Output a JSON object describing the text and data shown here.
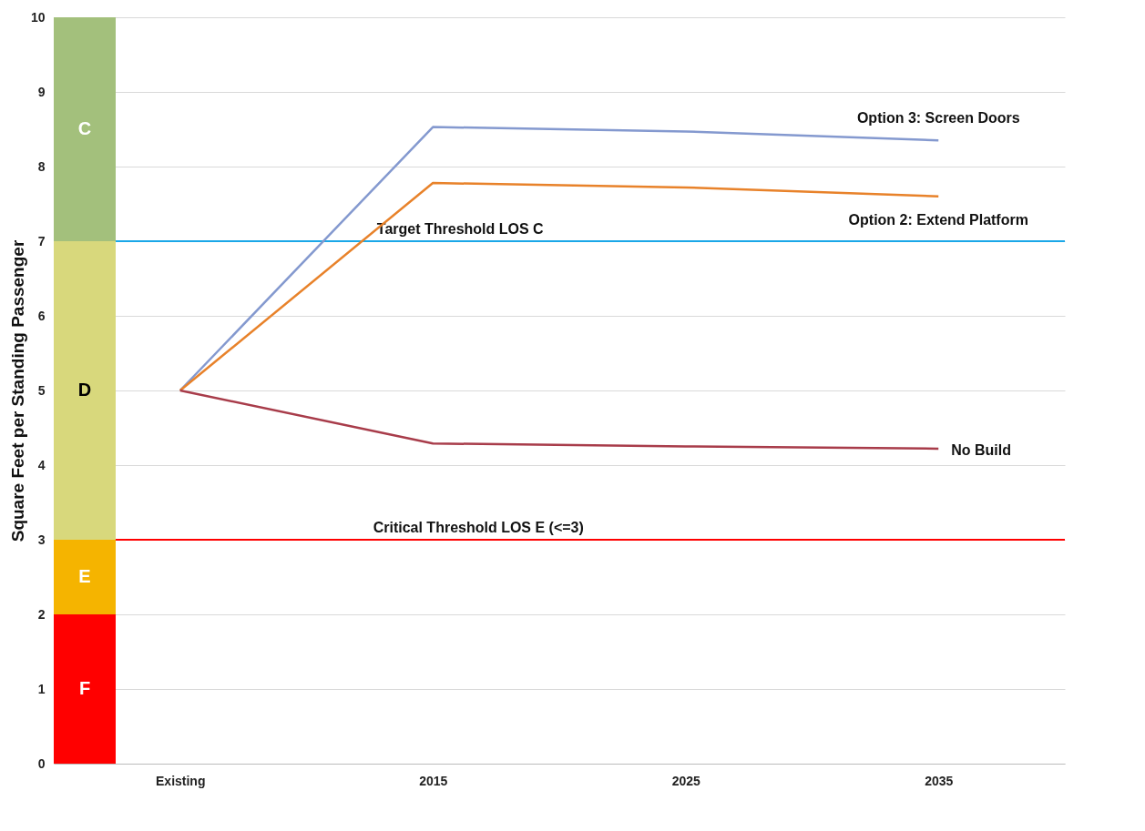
{
  "chart_data": {
    "type": "line",
    "ylabel": "Square Feet per Standing Passenger",
    "categories": [
      "Existing",
      "2015",
      "2025",
      "2035"
    ],
    "series": [
      {
        "name": "Option 3: Screen Doors",
        "color": "#8499cf",
        "values": [
          5,
          8.53,
          8.47,
          8.35
        ]
      },
      {
        "name": "Option 2: Extend Platform",
        "color": "#e8822a",
        "values": [
          5,
          7.78,
          7.72,
          7.6
        ]
      },
      {
        "name": "No Build",
        "color": "#a83c4a",
        "values": [
          5,
          4.29,
          4.25,
          4.22
        ]
      }
    ],
    "ylim": [
      0,
      10
    ],
    "yticks": [
      0,
      1,
      2,
      3,
      4,
      5,
      6,
      7,
      8,
      9,
      10
    ],
    "grid": "y",
    "ref_lines": [
      {
        "axis": "y",
        "value": 7,
        "label": "Target Threshold LOS C",
        "color": "#1aa7e8"
      },
      {
        "axis": "y",
        "value": 3,
        "label": "Critical Threshold LOS E (<=3)",
        "color": "#ff0000"
      }
    ],
    "bands": [
      {
        "axis": "y",
        "from": 0,
        "to": 2,
        "label": "F",
        "color": "#ff0000"
      },
      {
        "axis": "y",
        "from": 2,
        "to": 3,
        "label": "E",
        "color": "#f5b400"
      },
      {
        "axis": "y",
        "from": 3,
        "to": 7,
        "label": "D",
        "color": "#d8d87c"
      },
      {
        "axis": "y",
        "from": 7,
        "to": 10,
        "label": "C",
        "color": "#a3c07c"
      }
    ]
  }
}
